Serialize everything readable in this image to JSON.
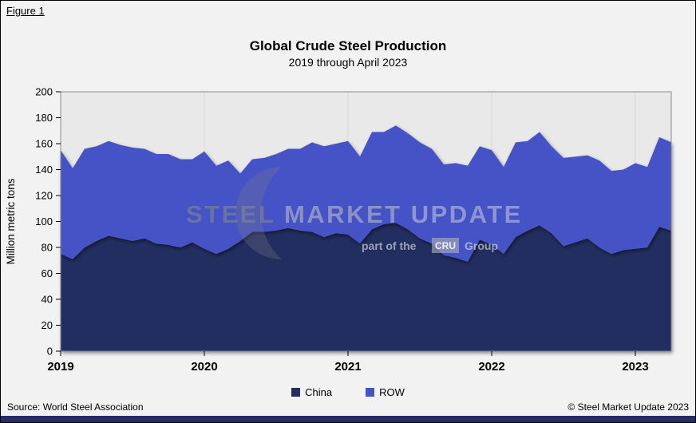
{
  "figure_label": "Figure 1",
  "title": "Global Crude Steel Production",
  "subtitle": "2019 through April 2023",
  "y_axis_label": "Million metric tons",
  "legend": [
    {
      "label": "China",
      "color": "#242d5f"
    },
    {
      "label": "ROW",
      "color": "#4453c6"
    }
  ],
  "footer": {
    "source": "Source: World Steel Association",
    "copyright": "© Steel Market Update 2023"
  },
  "watermark": {
    "word1": "STEEL",
    "word2": "MARKET",
    "word3": "UPDATE",
    "tagline_prefix": "part of the",
    "tagline_box": "CRU",
    "tagline_suffix": "Group"
  },
  "colors": {
    "page_bg": "#f2f2f2",
    "plot_bg": "#e9e9e9",
    "gridline": "#d9d9d9",
    "china": "#242d5f",
    "row": "#4453c6",
    "bottom_bar": "#232d5f"
  },
  "chart_data": {
    "type": "area",
    "stacked": true,
    "title": "Global Crude Steel Production",
    "subtitle": "2019 through April 2023",
    "xlabel": "",
    "ylabel": "Million metric tons",
    "ylim": [
      0,
      200
    ],
    "ytick_step": 20,
    "grid": "vertical-year-lines",
    "legend_position": "bottom",
    "x": [
      "2019-01",
      "2019-02",
      "2019-03",
      "2019-04",
      "2019-05",
      "2019-06",
      "2019-07",
      "2019-08",
      "2019-09",
      "2019-10",
      "2019-11",
      "2019-12",
      "2020-01",
      "2020-02",
      "2020-03",
      "2020-04",
      "2020-05",
      "2020-06",
      "2020-07",
      "2020-08",
      "2020-09",
      "2020-10",
      "2020-11",
      "2020-12",
      "2021-01",
      "2021-02",
      "2021-03",
      "2021-04",
      "2021-05",
      "2021-06",
      "2021-07",
      "2021-08",
      "2021-09",
      "2021-10",
      "2021-11",
      "2021-12",
      "2022-01",
      "2022-02",
      "2022-03",
      "2022-04",
      "2022-05",
      "2022-06",
      "2022-07",
      "2022-08",
      "2022-09",
      "2022-10",
      "2022-11",
      "2022-12",
      "2023-01",
      "2023-02",
      "2023-03",
      "2023-04"
    ],
    "x_tick_labels": [
      "2019",
      "2020",
      "2021",
      "2022",
      "2023"
    ],
    "x_tick_positions": [
      0,
      12,
      24,
      36,
      48
    ],
    "series": [
      {
        "name": "China",
        "color": "#242d5f",
        "values": [
          75,
          71,
          80,
          85,
          89,
          87,
          85,
          87,
          83,
          82,
          80,
          84,
          79,
          75,
          79,
          85,
          92,
          92,
          93,
          95,
          93,
          92,
          88,
          91,
          90,
          83,
          94,
          98,
          99,
          94,
          87,
          83,
          74,
          72,
          69,
          86,
          82,
          75,
          88,
          93,
          97,
          91,
          81,
          84,
          87,
          80,
          75,
          78,
          79,
          80,
          96,
          93
        ]
      },
      {
        "name": "ROW",
        "color": "#4453c6",
        "values": [
          80,
          70,
          76,
          73,
          73,
          72,
          72,
          69,
          69,
          70,
          68,
          64,
          75,
          68,
          68,
          52,
          56,
          57,
          59,
          61,
          63,
          69,
          70,
          69,
          72,
          67,
          75,
          71,
          75,
          74,
          74,
          73,
          70,
          73,
          74,
          72,
          73,
          67,
          73,
          69,
          72,
          67,
          68,
          66,
          64,
          67,
          64,
          62,
          66,
          62,
          69,
          68
        ]
      }
    ]
  }
}
